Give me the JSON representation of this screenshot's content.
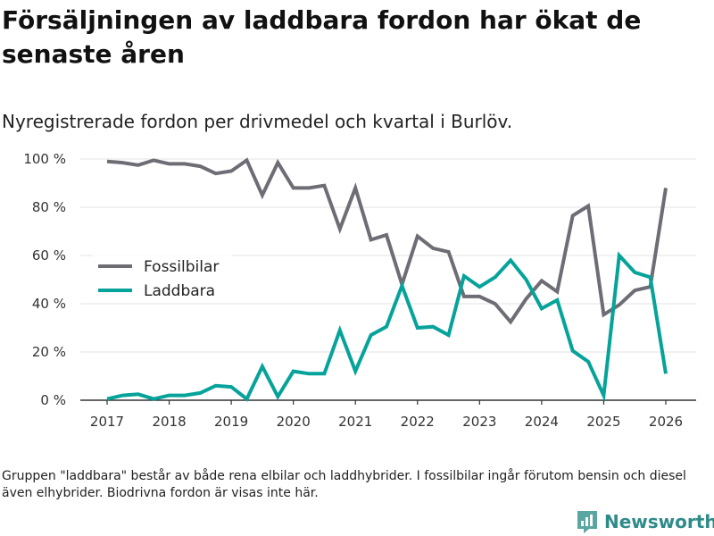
{
  "header": {
    "title": "Försäljningen av laddbara fordon har ökat de senaste åren",
    "subtitle": "Nyregistrerade fordon per drivmedel och kvartal i Burlöv."
  },
  "footer": {
    "note": "Gruppen \"laddbara\" består av både rena elbilar och laddhybrider. I fossilbilar ingår förutom bensin och diesel även elhybrider. Biodrivna fordon är visas inte här.",
    "brand": "Newsworthy"
  },
  "chart_data": {
    "type": "line",
    "title": "Försäljningen av laddbara fordon har ökat de senaste åren",
    "subtitle": "Nyregistrerade fordon per drivmedel och kvartal i Burlöv.",
    "xlabel": "",
    "ylabel": "",
    "x_ticks": [
      "2017",
      "2018",
      "2019",
      "2020",
      "2021",
      "2022",
      "2023",
      "2024",
      "2025",
      "2026"
    ],
    "y_ticks": [
      "0 %",
      "20 %",
      "40 %",
      "60 %",
      "80 %",
      "100 %"
    ],
    "ylim": [
      0,
      100
    ],
    "xlim": [
      2017,
      2026
    ],
    "grid": true,
    "legend_position": "left",
    "x": [
      2017.0,
      2017.25,
      2017.5,
      2017.75,
      2018.0,
      2018.25,
      2018.5,
      2018.75,
      2019.0,
      2019.25,
      2019.5,
      2019.75,
      2020.0,
      2020.25,
      2020.5,
      2020.75,
      2021.0,
      2021.25,
      2021.5,
      2021.75,
      2022.0,
      2022.25,
      2022.5,
      2022.75,
      2023.0,
      2023.25,
      2023.5,
      2023.75,
      2024.0,
      2024.25,
      2024.5,
      2024.75,
      2025.0,
      2025.25,
      2025.5,
      2025.75,
      2026.0
    ],
    "series": [
      {
        "name": "Fossilbilar",
        "color": "#6e6d75",
        "values": [
          99,
          98.5,
          97.5,
          99.5,
          98,
          98,
          97,
          94,
          95,
          99.5,
          85,
          98.5,
          88,
          88,
          89,
          71,
          88,
          66.5,
          68.5,
          48,
          68,
          63,
          61.5,
          43,
          43,
          40,
          32.5,
          42,
          49.5,
          45,
          76.5,
          80.5,
          35.5,
          39.5,
          45.5,
          47,
          88
        ]
      },
      {
        "name": "Laddbara",
        "color": "#05a39a",
        "values": [
          0.5,
          2,
          2.5,
          0.5,
          2,
          2,
          3,
          6,
          5.5,
          0.5,
          14,
          1.5,
          12,
          11,
          11,
          29,
          12,
          27,
          30.5,
          47.5,
          30,
          30.5,
          27,
          51.5,
          47,
          51,
          58,
          50,
          38,
          41.5,
          20.5,
          16,
          2,
          60,
          53,
          51,
          11
        ]
      }
    ]
  }
}
